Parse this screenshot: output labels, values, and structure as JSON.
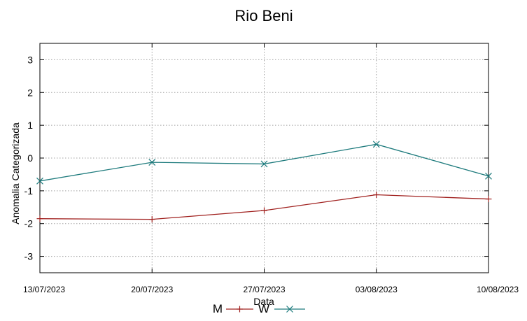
{
  "chart_data": {
    "type": "line",
    "title": "Rio Beni",
    "xlabel": "Data",
    "ylabel": "Anomalia Categorizada",
    "categories": [
      "13/07/2023",
      "20/07/2023",
      "27/07/2023",
      "03/08/2023",
      "10/08/2023"
    ],
    "yticks": [
      "3",
      "2",
      "1",
      "0",
      "-1",
      "-2",
      "-3"
    ],
    "ylim": [
      -3.5,
      3.5
    ],
    "grid": true,
    "legend_position": "bottom",
    "series": [
      {
        "name": "M",
        "marker": "+",
        "color": "#a0201e",
        "values": [
          -1.85,
          -1.87,
          -1.6,
          -1.12,
          -1.25
        ]
      },
      {
        "name": "W",
        "marker": "x",
        "color": "#1e7b7d",
        "values": [
          -0.7,
          -0.13,
          -0.18,
          0.42,
          -0.55
        ]
      }
    ]
  }
}
